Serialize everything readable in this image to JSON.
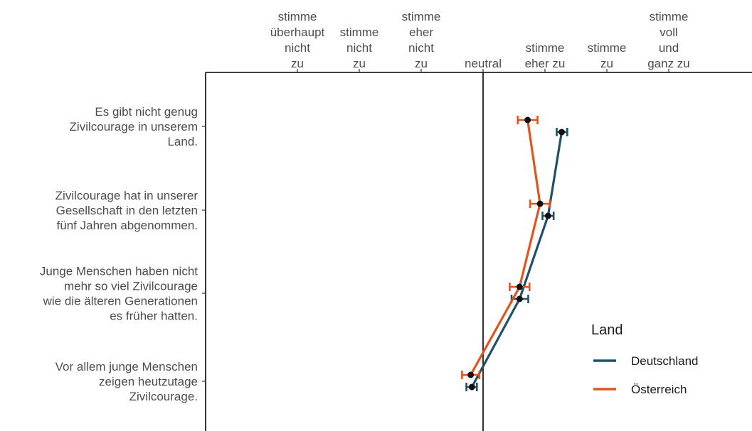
{
  "chart_data": {
    "type": "scatter",
    "x_scale": {
      "ticks": [
        {
          "value": -3,
          "label": [
            "stimme",
            "überhaupt",
            "nicht",
            "zu"
          ]
        },
        {
          "value": -2,
          "label": [
            "stimme",
            "nicht",
            "zu"
          ]
        },
        {
          "value": -1,
          "label": [
            "stimme",
            "eher",
            "nicht",
            "zu"
          ]
        },
        {
          "value": 0,
          "label": [
            "neutral"
          ]
        },
        {
          "value": 1,
          "label": [
            "stimme",
            "eher zu"
          ]
        },
        {
          "value": 2,
          "label": [
            "stimme",
            "zu"
          ]
        },
        {
          "value": 3,
          "label": [
            "stimme",
            "voll",
            "und",
            "ganz zu"
          ]
        }
      ],
      "reference_line": 0
    },
    "categories": [
      [
        "Es gibt nicht genug",
        "Zivilcourage in unserem",
        "Land."
      ],
      [
        "Zivilcourage hat in unserer",
        "Gesellschaft in den letzten",
        "fünf Jahren abgenommen."
      ],
      [
        "Junge Menschen haben nicht",
        "mehr so viel Zivilcourage",
        "wie die älteren Generationen",
        "es früher hatten."
      ],
      [
        "Vor allem junge Menschen",
        "zeigen heutzutage",
        "Zivilcourage."
      ]
    ],
    "series": [
      {
        "name": "Deutschland",
        "color": "#1f5266",
        "values": [
          1.27,
          1.05,
          0.59,
          -0.18
        ],
        "ci": [
          [
            1.19,
            1.36
          ],
          [
            0.96,
            1.14
          ],
          [
            0.46,
            0.73
          ],
          [
            -0.27,
            -0.1
          ]
        ]
      },
      {
        "name": "Österreich",
        "color": "#e0551f",
        "values": [
          0.72,
          0.92,
          0.59,
          -0.2
        ],
        "ci": [
          [
            0.56,
            0.88
          ],
          [
            0.76,
            1.08
          ],
          [
            0.43,
            0.75
          ],
          [
            -0.34,
            -0.06
          ]
        ]
      }
    ],
    "legend": {
      "title": "Land",
      "position": "bottom-right"
    },
    "grid": false
  }
}
